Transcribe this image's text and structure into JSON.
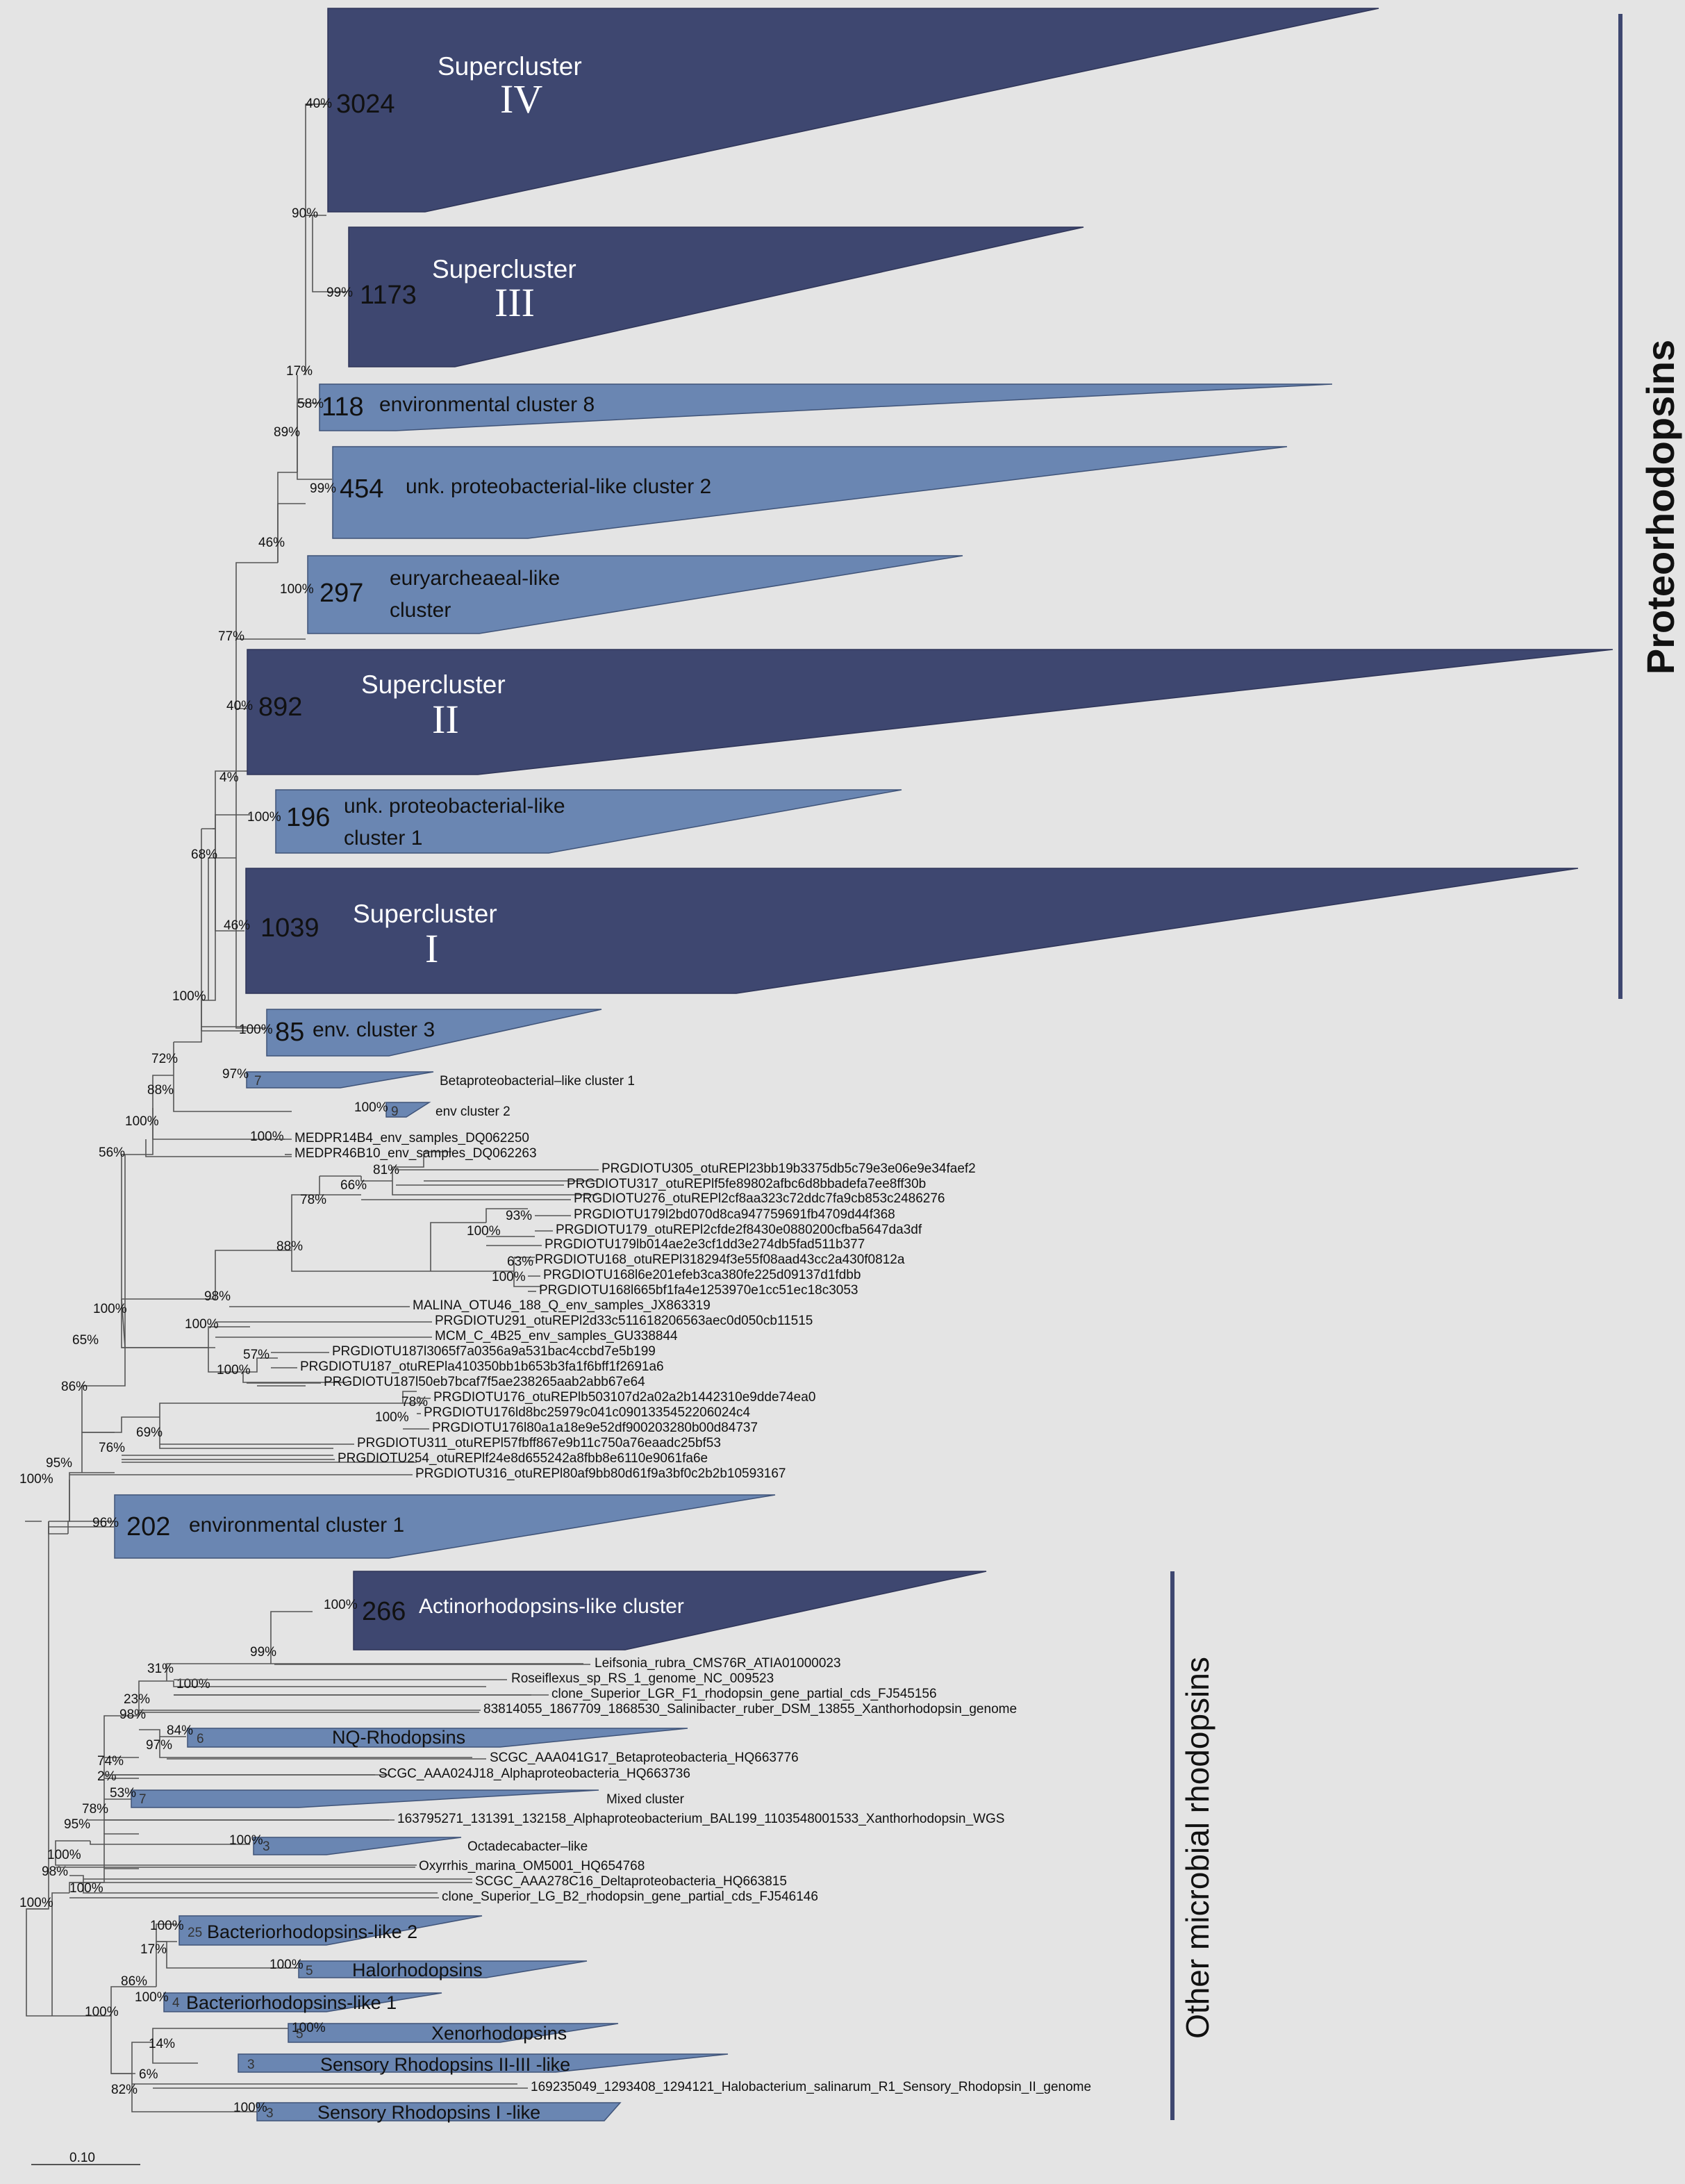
{
  "collapsed_clades": [
    {
      "id": "sc4",
      "count": "3024",
      "support": "40%",
      "title": "Supercluster",
      "numeral": "IV"
    },
    {
      "id": "sc3",
      "count": "1173",
      "support": "99%",
      "title": "Supercluster",
      "numeral": "III"
    },
    {
      "id": "env8",
      "count": "118",
      "support": "58%",
      "label": "environmental cluster 8"
    },
    {
      "id": "pc2",
      "count": "454",
      "support": "99%",
      "label": "unk. proteobacterial-like cluster 2"
    },
    {
      "id": "eury",
      "count": "297",
      "support": "100%",
      "label1": "euryarcheaeal-like",
      "label2": "cluster"
    },
    {
      "id": "sc2",
      "count": "892",
      "support": "40%",
      "title": "Supercluster",
      "numeral": "II"
    },
    {
      "id": "pc1",
      "count": "196",
      "support": "100%",
      "label1": "unk. proteobacterial-like",
      "label2": "cluster 1"
    },
    {
      "id": "sc1",
      "count": "1039",
      "support": "46%",
      "title": "Supercluster",
      "numeral": "I"
    },
    {
      "id": "env3",
      "count": "85",
      "support": "100%",
      "label": "env. cluster 3"
    },
    {
      "id": "beta1",
      "count": "7",
      "support": "97%",
      "label": "Betaproteobacterial–like cluster 1"
    },
    {
      "id": "env2",
      "count": "9",
      "support": "100%",
      "label": "env cluster 2"
    },
    {
      "id": "env1",
      "count": "202",
      "support": "96%",
      "label": "environmental cluster 1"
    },
    {
      "id": "actino",
      "count": "266",
      "support": "100%",
      "label": "Actinorhodopsins-like cluster"
    },
    {
      "id": "nq",
      "count": "6",
      "support": "84%",
      "label": "NQ-Rhodopsins"
    },
    {
      "id": "mixed",
      "count": "7",
      "support": "53%",
      "label": "Mixed cluster"
    },
    {
      "id": "octa",
      "count": "3",
      "support": "100%",
      "label": "Octadecabacter–like"
    },
    {
      "id": "bac2",
      "count": "25",
      "support": "100%",
      "label": "Bacteriorhodopsins-like 2"
    },
    {
      "id": "halo",
      "count": "5",
      "support": "100%",
      "label": "Halorhodopsins"
    },
    {
      "id": "bac1",
      "count": "4",
      "support": "100%",
      "label": "Bacteriorhodopsins-like 1"
    },
    {
      "id": "xeno",
      "count": "5",
      "support": "100%",
      "label": "Xenorhodopsins"
    },
    {
      "id": "sens23",
      "count": "3",
      "support": "",
      "label": "Sensory Rhodopsins II-III -like"
    },
    {
      "id": "sens1",
      "count": "3",
      "support": "100%",
      "label": "Sensory Rhodopsins I -like"
    }
  ],
  "leaves": [
    "MEDPR14B4_env_samples_DQ062250",
    "MEDPR46B10_env_samples_DQ062263",
    "PRGDIOTU305_otuREPl23bb19b3375db5c79e3e06e9e34faef2",
    "PRGDIOTU317_otuREPlf5fe89802afbc6d8bbadefa7ee8ff30b",
    "PRGDIOTU276_otuREPl2cf8aa323c72ddc7fa9cb853c2486276",
    "PRGDIOTU179l2bd070d8ca947759691fb4709d44f368",
    "PRGDIOTU179_otuREPl2cfde2f8430e0880200cfba5647da3df",
    "PRGDIOTU179lb014ae2e3cf1dd3e274db5fad511b377",
    "PRGDIOTU168_otuREPl318294f3e55f08aad43cc2a430f0812a",
    "PRGDIOTU168l6e201efeb3ca380fe225d09137d1fdbb",
    "PRGDIOTU168l665bf1fa4e1253970e1cc51ec18c3053",
    "MALINA_OTU46_188_Q_env_samples_JX863319",
    "PRGDIOTU291_otuREPl2d33c511618206563aec0d050cb11515",
    "MCM_C_4B25_env_samples_GU338844",
    "PRGDIOTU187l3065f7a0356a9a531bac4ccbd7e5b199",
    "PRGDIOTU187_otuREPla410350bb1b653b3fa1f6bff1f2691a6",
    "PRGDIOTU187l50eb7bcaf7f5ae238265aab2abb67e64",
    "PRGDIOTU176_otuREPlb503107d2a02a2b1442310e9dde74ea0",
    "PRGDIOTU176ld8bc25979c041c0901335452206024c4",
    "PRGDIOTU176l80a1a18e9e52df900203280b00d84737",
    "PRGDIOTU311_otuREPl57fbff867e9b11c750a76eaadc25bf53",
    "PRGDIOTU254_otuREPlf24e8d655242a8fbb8e6110e9061fa6e",
    "PRGDIOTU316_otuREPl80af9bb80d61f9a3bf0c2b2b10593167",
    "Leifsonia_rubra_CMS76R_ATIA01000023",
    "Roseiflexus_sp_RS_1_genome_NC_009523",
    "clone_Superior_LGR_F1_rhodopsin_gene_partial_cds_FJ545156",
    "83814055_1867709_1868530_Salinibacter_ruber_DSM_13855_Xanthorhodopsin_genome",
    "SCGC_AAA041G17_Betaproteobacteria_HQ663776",
    "SCGC_AAA024J18_Alphaproteobacteria_HQ663736",
    "163795271_131391_132158_Alphaproteobacterium_BAL199_1103548001533_Xanthorhodopsin_WGS",
    "Oxyrrhis_marina_OM5001_HQ654768",
    "SCGC_AAA278C16_Deltaproteobacteria_HQ663815",
    "clone_Superior_LG_B2_rhodopsin_gene_partial_cds_FJ546146",
    "169235049_1293408_1294121_Halobacterium_salinarum_R1_Sensory_Rhodopsin_II_genome"
  ],
  "node_supports": {
    "n90": "90%",
    "n17": "17%",
    "n89": "89%",
    "n46": "46%",
    "n77": "77%",
    "n4": "4%",
    "n68": "68%",
    "n100a": "100%",
    "n72": "72%",
    "n88": "88%",
    "n100b": "100%",
    "n100c": "100%",
    "n56": "56%",
    "n81": "81%",
    "n66": "66%",
    "n78": "78%",
    "n93": "93%",
    "n100d": "100%",
    "n88b": "88%",
    "n63": "63%",
    "n100e": "100%",
    "n98": "98%",
    "n100f": "100%",
    "n100g": "100%",
    "n65": "65%",
    "n57": "57%",
    "n100h": "100%",
    "n86": "86%",
    "n78b": "78%",
    "n100i": "100%",
    "n69": "69%",
    "n76": "76%",
    "n95": "95%",
    "n100root": "100%",
    "n99": "99%",
    "n31": "31%",
    "n100j": "100%",
    "n23": "23%",
    "n98b": "98%",
    "n97": "97%",
    "n74": "74%",
    "n2": "2%",
    "n78c": "78%",
    "n95b": "95%",
    "n100k": "100%",
    "n98c": "98%",
    "n100l": "100%",
    "n100m": "100%",
    "n17b": "17%",
    "n86b": "86%",
    "n100n": "100%",
    "n14": "14%",
    "n6": "6%",
    "n82": "82%"
  },
  "groups": {
    "proteorhodopsins": "Proteorhodopsins",
    "other": "Other microbial rhodopsins"
  },
  "scale_bar": "0.10",
  "colors": {
    "dark": "#3e4770",
    "light": "#6a86b2",
    "background": "#e4e4e4"
  }
}
